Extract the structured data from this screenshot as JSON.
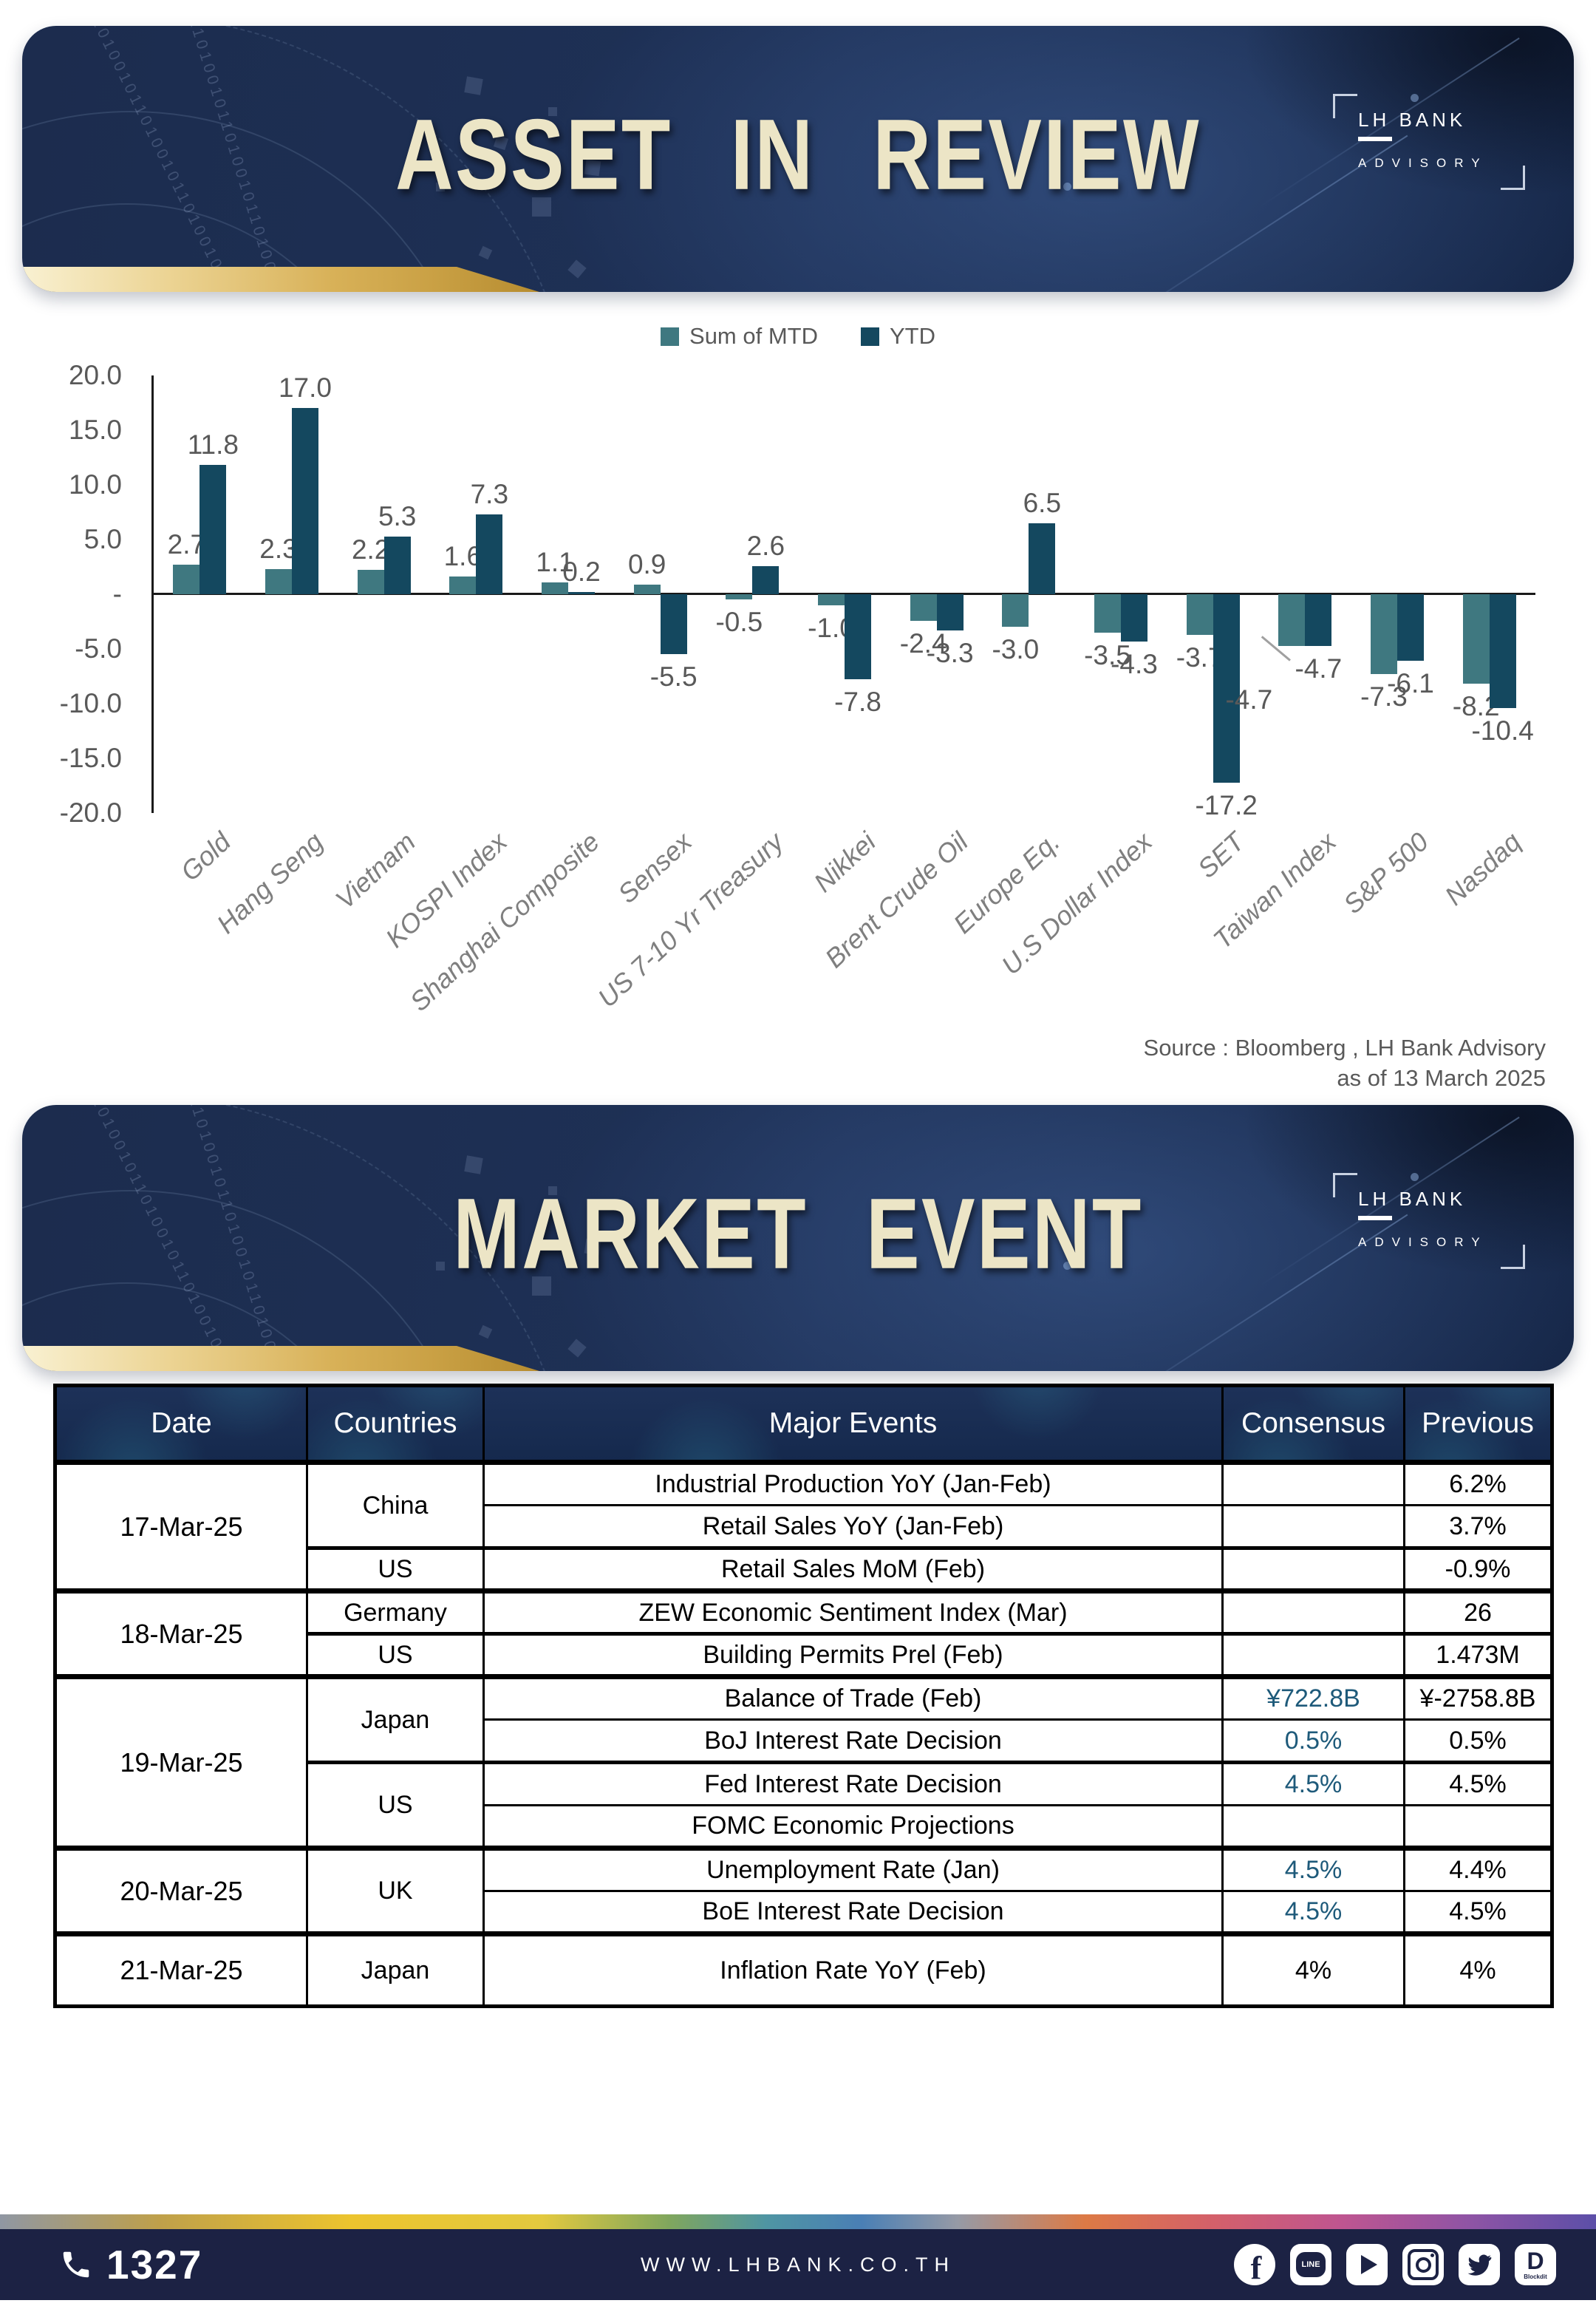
{
  "banner_asset": {
    "title": "ASSET IN REVIEW"
  },
  "banner_market": {
    "title": "MARKET EVENT"
  },
  "logo": {
    "name": "LH BANK",
    "sub": "ADVISORY"
  },
  "decor": {
    "binary": "0110100101101001011010010110100101"
  },
  "chart_data": {
    "type": "bar",
    "title": "",
    "xlabel": "",
    "ylabel": "",
    "categories": [
      "Gold",
      "Hang Seng",
      "Vietnam",
      "KOSPI Index",
      "Shanghai Composite",
      "Sensex",
      "US 7-10 Yr Treasury",
      "Nikkei",
      "Brent Crude Oil",
      "Europe Eq.",
      "U.S Dollar Index",
      "SET",
      "Taiwan Index",
      "S&P 500",
      "Nasdaq"
    ],
    "series": [
      {
        "name": "Sum of MTD",
        "color": "#3f7880",
        "values": [
          2.7,
          2.3,
          2.2,
          1.6,
          1.1,
          0.9,
          -0.5,
          -1.0,
          -2.4,
          -3.0,
          -3.5,
          -3.7,
          -4.7,
          -7.3,
          -8.2
        ]
      },
      {
        "name": "YTD",
        "color": "#14485f",
        "values": [
          11.8,
          17.0,
          5.3,
          7.3,
          0.2,
          -5.5,
          2.6,
          -7.8,
          -3.3,
          6.5,
          -4.3,
          -17.2,
          -4.7,
          -6.1,
          -10.4
        ]
      }
    ],
    "ylim": [
      -20,
      20
    ],
    "yticks": [
      {
        "label": "20.0",
        "v": 20
      },
      {
        "label": "15.0",
        "v": 15
      },
      {
        "label": "10.0",
        "v": 10
      },
      {
        "label": "5.0",
        "v": 5
      },
      {
        "label": "-",
        "v": 0
      },
      {
        "label": "-5.0",
        "v": -5
      },
      {
        "label": "-10.0",
        "v": -10
      },
      {
        "label": "-15.0",
        "v": -15
      },
      {
        "label": "-20.0",
        "v": -20
      }
    ],
    "grid": false,
    "legend_position": "top",
    "value_labels": true
  },
  "source": {
    "line1": "Source : Bloomberg , LH Bank Advisory",
    "line2": "as of 13 March 2025"
  },
  "table": {
    "headers": [
      "Date",
      "Countries",
      "Major Events",
      "Consensus",
      "Previous"
    ],
    "consensus_color": "#1e5a7a",
    "rows": [
      {
        "date": "17-Mar-25",
        "date_span": 3,
        "country": "China",
        "country_span": 2,
        "event": "Industrial Production YoY (Jan-Feb)",
        "consensus": "",
        "previous": "6.2%",
        "sep": "date"
      },
      {
        "event": "Retail Sales YoY (Jan-Feb)",
        "consensus": "",
        "previous": "3.7%",
        "sep": "event"
      },
      {
        "country": "US",
        "country_span": 1,
        "event": "Retail Sales MoM (Feb)",
        "consensus": "",
        "previous": "-0.9%",
        "sep": "country"
      },
      {
        "date": "18-Mar-25",
        "date_span": 2,
        "country": "Germany",
        "country_span": 1,
        "event": "ZEW Economic Sentiment Index (Mar)",
        "consensus": "",
        "previous": "26",
        "sep": "date"
      },
      {
        "country": "US",
        "country_span": 1,
        "event": "Building Permits Prel (Feb)",
        "consensus": "",
        "previous": "1.473M",
        "sep": "country"
      },
      {
        "date": "19-Mar-25",
        "date_span": 4,
        "country": "Japan",
        "country_span": 2,
        "event": "Balance of Trade (Feb)",
        "consensus": "¥722.8B",
        "consensus_styled": true,
        "previous": "¥-2758.8B",
        "sep": "date"
      },
      {
        "event": "BoJ Interest Rate Decision",
        "consensus": "0.5%",
        "consensus_styled": true,
        "previous": "0.5%",
        "sep": "event"
      },
      {
        "country": "US",
        "country_span": 2,
        "event": "Fed Interest Rate Decision",
        "consensus": "4.5%",
        "consensus_styled": true,
        "previous": "4.5%",
        "sep": "country"
      },
      {
        "event": "FOMC Economic Projections",
        "consensus": "",
        "previous": "",
        "sep": "event"
      },
      {
        "date": "20-Mar-25",
        "date_span": 2,
        "country": "UK",
        "country_span": 2,
        "event": "Unemployment Rate (Jan)",
        "consensus": "4.5%",
        "consensus_styled": true,
        "previous": "4.4%",
        "sep": "date"
      },
      {
        "event": "BoE Interest Rate Decision",
        "consensus": "4.5%",
        "consensus_styled": true,
        "previous": "4.5%",
        "sep": "event"
      },
      {
        "date": "21-Mar-25",
        "date_span": 1,
        "country": "Japan",
        "country_span": 1,
        "event": "Inflation Rate YoY (Feb)",
        "consensus": "4%",
        "consensus_styled": false,
        "previous": "4%",
        "sep": "date",
        "tall": true
      }
    ]
  },
  "footer": {
    "phone": "1327",
    "website": "WWW.LHBANK.CO.TH",
    "bar_color": "#1c2244",
    "social": [
      "facebook",
      "line",
      "youtube",
      "instagram",
      "twitter",
      "blockdit"
    ]
  }
}
